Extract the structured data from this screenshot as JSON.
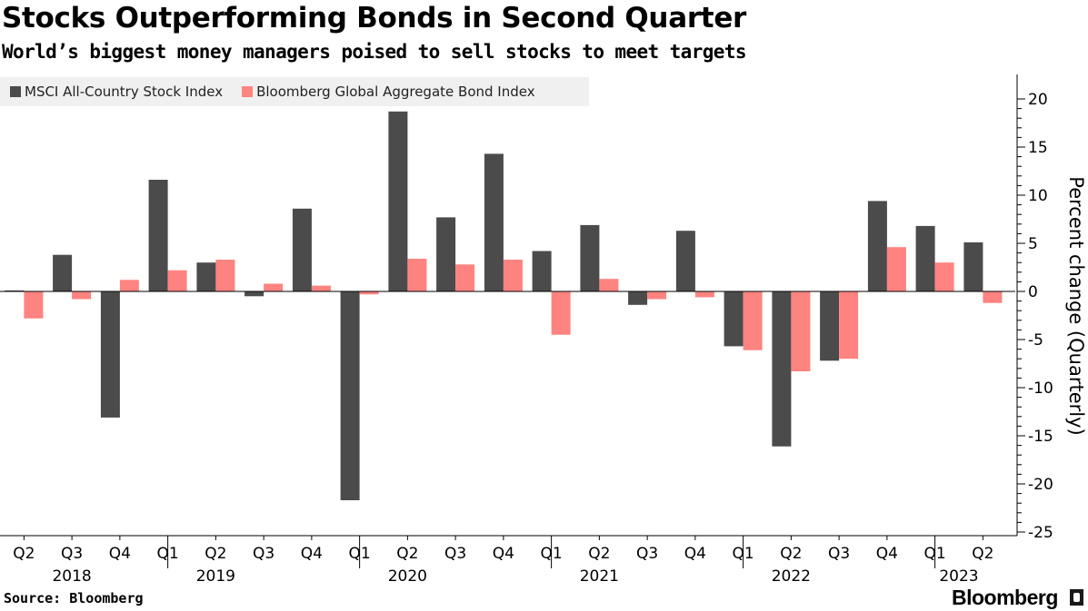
{
  "header": {
    "title": "Stocks Outperforming Bonds in Second Quarter",
    "subtitle": "World’s biggest money managers poised to sell stocks to meet targets"
  },
  "footer": {
    "source": "Source: Bloomberg",
    "brand": "Bloomberg"
  },
  "colors": {
    "stock": "#4b4b4b",
    "bond": "#ff8380",
    "axis": "#000000",
    "legend_bg": "#f0f0f0"
  },
  "chart_data": {
    "type": "bar",
    "categories": [
      "Q2",
      "Q3",
      "Q4",
      "Q1",
      "Q2",
      "Q3",
      "Q4",
      "Q1",
      "Q2",
      "Q3",
      "Q4",
      "Q1",
      "Q2",
      "Q3",
      "Q4",
      "Q1",
      "Q2",
      "Q3",
      "Q4",
      "Q1",
      "Q2"
    ],
    "year_labels": [
      {
        "label": "2018",
        "index": 1
      },
      {
        "label": "2019",
        "index": 4
      },
      {
        "label": "2020",
        "index": 8
      },
      {
        "label": "2021",
        "index": 12
      },
      {
        "label": "2022",
        "index": 16
      },
      {
        "label": "2023",
        "index": 19.5
      }
    ],
    "series": [
      {
        "name": "MSCI All-Country Stock Index",
        "color": "#4b4b4b",
        "values": [
          0.1,
          3.8,
          -13.1,
          11.6,
          3.0,
          -0.5,
          8.6,
          -21.7,
          18.7,
          7.7,
          14.3,
          4.2,
          6.9,
          -1.4,
          6.3,
          -5.7,
          -16.1,
          -7.2,
          9.4,
          6.8,
          5.1
        ]
      },
      {
        "name": "Bloomberg Global Aggregate Bond Index",
        "color": "#ff8380",
        "values": [
          -2.8,
          -0.8,
          1.2,
          2.2,
          3.3,
          0.8,
          0.6,
          -0.3,
          3.4,
          2.8,
          3.3,
          -4.5,
          1.3,
          -0.8,
          -0.6,
          -6.1,
          -8.3,
          -7.0,
          4.6,
          3.0,
          -1.2
        ]
      }
    ],
    "ylabel": "Percent change (Quarterly)",
    "ylim": [
      -25,
      22
    ],
    "yticks": [
      20,
      15,
      10,
      5,
      0,
      -5,
      -10,
      -15,
      -20,
      -25
    ],
    "y_axis_position": "right",
    "legend_position": "top-left",
    "grid": false
  }
}
